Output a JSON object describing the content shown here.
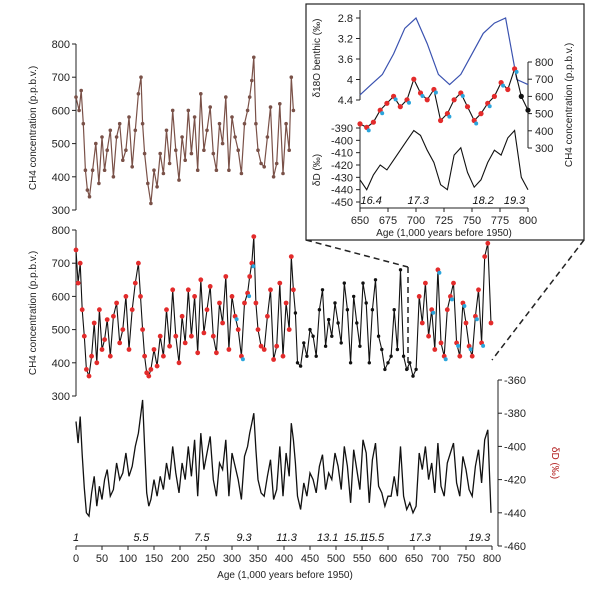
{
  "colors": {
    "brown": "#7a5148",
    "black": "#111111",
    "red": "#e32b2b",
    "cyan": "#2aa5dc",
    "blue": "#3a52b0"
  },
  "labels": {
    "ch4_ylabel": "CH4 concentration (p.p.b.v.)",
    "dD_ylabel": "δD (‰)",
    "xlabel": "Age (1,000 years before 1950)",
    "inset_xlabel": "Age (1,000 years before 1950)",
    "inset_d18o_label": "δ18O benthic (‰)",
    "inset_ch4_label": "CH4 concentration (p.p.b.v.)",
    "inset_dD_label": "δD (‰)"
  },
  "stages": [
    "1",
    "5.5",
    "7.5",
    "9.3",
    "11.3",
    "13.1",
    "15.1",
    "15.5",
    "17.3",
    "19.3"
  ],
  "inset_stages": [
    "16.4",
    "17.3",
    "18.2",
    "19.3"
  ],
  "chart_data": [
    {
      "type": "line",
      "panel": "top",
      "series": [
        {
          "x": [
            0,
            6,
            10,
            14,
            18,
            22,
            26,
            32,
            38,
            44,
            50,
            55,
            60,
            66,
            72,
            78,
            84,
            90,
            96,
            102,
            108,
            114,
            120,
            125,
            128,
            132,
            138,
            144,
            150,
            156,
            162,
            168,
            174,
            180,
            186,
            192,
            198,
            204,
            210,
            216,
            222,
            228,
            234,
            240,
            246,
            252,
            258,
            264,
            270,
            276,
            282,
            288,
            294,
            300,
            306,
            312,
            318,
            324,
            330,
            334,
            338,
            342,
            346,
            350,
            356,
            362,
            368,
            374,
            380,
            386,
            392,
            398,
            404,
            410,
            414,
            418
          ],
          "values": [
            640,
            600,
            660,
            560,
            420,
            360,
            340,
            420,
            500,
            380,
            520,
            420,
            480,
            540,
            400,
            520,
            560,
            450,
            480,
            580,
            430,
            540,
            650,
            700,
            560,
            470,
            380,
            320,
            420,
            370,
            470,
            410,
            540,
            440,
            600,
            480,
            390,
            520,
            450,
            600,
            470,
            580,
            420,
            650,
            480,
            540,
            610,
            470,
            420,
            560,
            500,
            640,
            420,
            580,
            520,
            480,
            410,
            560,
            600,
            640,
            690,
            760,
            560,
            480,
            440,
            430,
            520,
            610,
            400,
            440,
            620,
            410,
            560,
            480,
            700,
            600
          ]
        }
      ],
      "ylabel": "CH4 concentration (p.p.b.v.)",
      "ylim": [
        300,
        800
      ],
      "yticks": [
        300,
        400,
        500,
        600,
        700,
        800
      ]
    },
    {
      "type": "line",
      "panel": "middle",
      "series": [
        {
          "x": [
            0,
            4,
            8,
            12,
            16,
            20,
            25,
            30,
            35,
            40,
            45,
            50,
            55,
            60,
            66,
            72,
            78,
            84,
            90,
            96,
            102,
            108,
            114,
            120,
            124,
            128,
            132,
            136,
            140,
            144,
            150,
            156,
            162,
            168,
            174,
            180,
            186,
            192,
            198,
            204,
            210,
            216,
            222,
            228,
            234,
            240,
            246,
            252,
            258,
            264,
            270,
            276,
            282,
            288,
            294,
            300,
            306,
            312,
            318,
            324,
            330,
            334,
            338,
            342,
            346,
            350,
            356,
            362,
            368,
            374,
            380,
            386,
            392,
            398,
            404,
            410,
            414,
            418,
            422,
            426,
            432,
            438,
            444,
            450,
            456,
            462,
            468,
            474,
            480,
            486,
            492,
            498,
            504,
            510,
            516,
            522,
            528,
            534,
            540,
            546,
            552,
            558,
            564,
            570,
            576,
            582,
            588,
            594,
            600,
            606,
            612,
            618,
            624,
            630,
            636,
            642,
            648,
            654,
            660,
            666,
            672,
            678,
            684,
            690,
            696,
            702,
            708,
            714,
            720,
            726,
            732,
            738,
            744,
            750,
            756,
            762,
            768,
            774,
            780,
            786,
            792,
            798
          ],
          "values": [
            740,
            640,
            700,
            560,
            480,
            380,
            360,
            420,
            520,
            400,
            560,
            440,
            470,
            530,
            420,
            540,
            580,
            460,
            500,
            600,
            440,
            560,
            640,
            700,
            600,
            500,
            420,
            370,
            360,
            380,
            440,
            390,
            480,
            420,
            560,
            450,
            620,
            480,
            400,
            540,
            460,
            620,
            480,
            600,
            430,
            650,
            490,
            560,
            630,
            480,
            430,
            580,
            520,
            660,
            440,
            600,
            540,
            500,
            420,
            580,
            610,
            660,
            700,
            780,
            580,
            500,
            450,
            440,
            540,
            620,
            410,
            450,
            640,
            420,
            580,
            500,
            720,
            620,
            550,
            400,
            390,
            460,
            420,
            500,
            480,
            420,
            560,
            620,
            450,
            530,
            480,
            580,
            520,
            460,
            640,
            560,
            400,
            600,
            520,
            450,
            640,
            580,
            400,
            560,
            650,
            480,
            440,
            380,
            400,
            420,
            560,
            440,
            680,
            420,
            380,
            400,
            360,
            380,
            600,
            520,
            640,
            480,
            560,
            440,
            680,
            460,
            420,
            560,
            600,
            640,
            460,
            420,
            580,
            520,
            450,
            420,
            540,
            620,
            460,
            720,
            760,
            520
          ]
        }
      ],
      "ylabel": "CH4 concentration (p.p.b.v.)",
      "ylim": [
        300,
        800
      ],
      "yticks": [
        300,
        400,
        500,
        600,
        700,
        800
      ]
    },
    {
      "type": "line",
      "panel": "bottom",
      "series": [
        {
          "x": [
            0,
            4,
            8,
            12,
            16,
            20,
            25,
            30,
            35,
            40,
            45,
            50,
            55,
            60,
            66,
            72,
            78,
            84,
            90,
            96,
            102,
            108,
            114,
            120,
            124,
            128,
            132,
            136,
            140,
            144,
            150,
            156,
            162,
            168,
            174,
            180,
            186,
            192,
            198,
            204,
            210,
            216,
            222,
            228,
            234,
            240,
            246,
            252,
            258,
            264,
            270,
            276,
            282,
            288,
            294,
            300,
            306,
            312,
            318,
            324,
            330,
            334,
            338,
            342,
            346,
            350,
            356,
            362,
            368,
            374,
            380,
            386,
            392,
            398,
            404,
            410,
            414,
            418,
            422,
            426,
            432,
            438,
            444,
            450,
            456,
            462,
            468,
            474,
            480,
            486,
            492,
            498,
            504,
            510,
            516,
            522,
            528,
            534,
            540,
            546,
            552,
            558,
            564,
            570,
            576,
            582,
            588,
            594,
            600,
            606,
            612,
            618,
            624,
            630,
            636,
            642,
            648,
            654,
            660,
            666,
            672,
            678,
            684,
            690,
            696,
            702,
            708,
            714,
            720,
            726,
            732,
            738,
            744,
            750,
            756,
            762,
            768,
            774,
            780,
            786,
            792,
            798
          ],
          "values": [
            -385,
            -398,
            -382,
            -405,
            -425,
            -440,
            -442,
            -428,
            -418,
            -436,
            -424,
            -432,
            -420,
            -414,
            -430,
            -426,
            -410,
            -420,
            -416,
            -404,
            -418,
            -412,
            -400,
            -392,
            -382,
            -372,
            -400,
            -428,
            -436,
            -432,
            -420,
            -430,
            -418,
            -426,
            -410,
            -420,
            -400,
            -416,
            -428,
            -410,
            -420,
            -400,
            -418,
            -396,
            -430,
            -392,
            -414,
            -404,
            -394,
            -420,
            -430,
            -410,
            -414,
            -396,
            -430,
            -404,
            -412,
            -420,
            -432,
            -406,
            -400,
            -392,
            -386,
            -380,
            -402,
            -420,
            -428,
            -430,
            -418,
            -408,
            -432,
            -426,
            -400,
            -430,
            -404,
            -418,
            -386,
            -396,
            -410,
            -430,
            -438,
            -422,
            -430,
            -416,
            -420,
            -428,
            -412,
            -405,
            -426,
            -416,
            -420,
            -404,
            -412,
            -426,
            -400,
            -412,
            -434,
            -402,
            -414,
            -426,
            -396,
            -404,
            -434,
            -408,
            -398,
            -424,
            -428,
            -436,
            -430,
            -430,
            -418,
            -430,
            -400,
            -430,
            -438,
            -434,
            -440,
            -436,
            -404,
            -414,
            -400,
            -420,
            -410,
            -428,
            -398,
            -424,
            -430,
            -410,
            -404,
            -398,
            -422,
            -430,
            -406,
            -414,
            -426,
            -430,
            -412,
            -402,
            -422,
            -396,
            -390,
            -440
          ]
        }
      ],
      "ylabel": "δD (‰)",
      "xlabel": "Age (1,000 years before 1950)",
      "xlim": [
        0,
        800
      ],
      "xticks": [
        0,
        50,
        100,
        150,
        200,
        250,
        300,
        350,
        400,
        450,
        500,
        550,
        600,
        650,
        700,
        750,
        800
      ],
      "ylim": [
        -460,
        -360
      ],
      "yticks": [
        -360,
        -380,
        -400,
        -420,
        -440,
        -460
      ]
    },
    {
      "type": "line",
      "panel": "inset",
      "xlabel": "Age (1,000 years before 1950)",
      "xlim": [
        650,
        800
      ],
      "xticks": [
        650,
        675,
        700,
        725,
        750,
        775,
        800
      ],
      "series": [
        {
          "name": "d18O",
          "x": [
            650,
            660,
            670,
            680,
            690,
            700,
            710,
            720,
            730,
            740,
            750,
            760,
            770,
            780,
            790,
            800
          ],
          "values": [
            4.3,
            4.1,
            3.9,
            3.5,
            3.0,
            2.8,
            3.3,
            3.9,
            4.1,
            3.9,
            3.5,
            3.1,
            2.9,
            2.8,
            4.0,
            4.1
          ],
          "ylim": [
            4.4,
            2.8
          ],
          "yticks": [
            2.8,
            3.2,
            3.6,
            4,
            4.4
          ]
        },
        {
          "name": "CH4",
          "x": [
            650,
            656,
            662,
            668,
            674,
            680,
            686,
            692,
            698,
            704,
            710,
            716,
            722,
            728,
            734,
            740,
            746,
            752,
            758,
            764,
            770,
            776,
            782,
            788,
            794,
            800
          ],
          "values": [
            440,
            420,
            450,
            520,
            560,
            600,
            540,
            580,
            700,
            620,
            580,
            640,
            460,
            500,
            580,
            620,
            540,
            460,
            500,
            560,
            600,
            680,
            640,
            760,
            600,
            520
          ],
          "ylim": [
            300,
            800
          ],
          "yticks": [
            300,
            400,
            500,
            600,
            700,
            800
          ]
        },
        {
          "name": "dD",
          "x": [
            650,
            656,
            662,
            668,
            674,
            680,
            686,
            692,
            698,
            704,
            710,
            716,
            722,
            728,
            734,
            740,
            746,
            752,
            758,
            764,
            770,
            776,
            782,
            788,
            794,
            800
          ],
          "values": [
            -432,
            -440,
            -428,
            -420,
            -424,
            -416,
            -408,
            -400,
            -392,
            -396,
            -408,
            -418,
            -436,
            -440,
            -412,
            -406,
            -426,
            -438,
            -432,
            -418,
            -408,
            -412,
            -398,
            -392,
            -430,
            -440
          ],
          "ylim": [
            -450,
            -390
          ],
          "yticks": [
            -390,
            -400,
            -410,
            -420,
            -430,
            -440,
            -450
          ]
        }
      ]
    }
  ]
}
